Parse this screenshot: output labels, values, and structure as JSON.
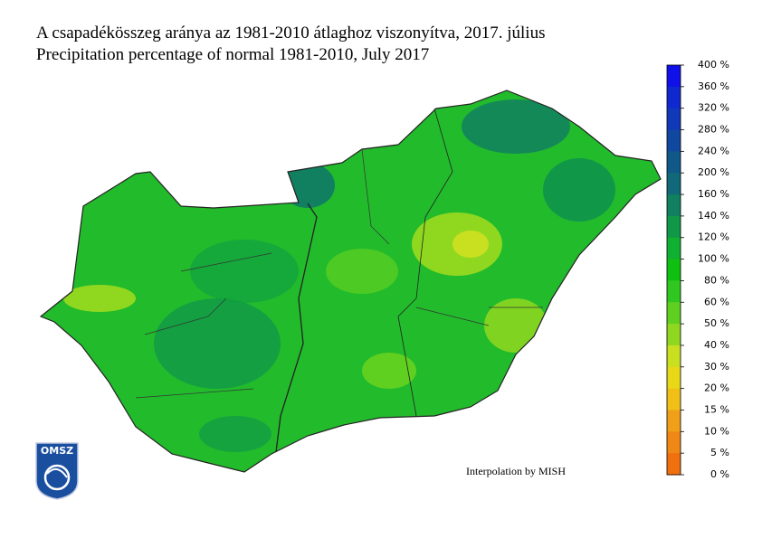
{
  "header": {
    "title_hu": "A csapadékösszeg aránya az 1981-2010 átlaghoz viszonyítva, 2017. július",
    "title_en": "Precipitation percentage of normal 1981-2010, July 2017"
  },
  "legend": {
    "labels": [
      "400 %",
      "360 %",
      "320 %",
      "280 %",
      "240 %",
      "200 %",
      "160 %",
      "140 %",
      "120 %",
      "100 %",
      "80 %",
      "60 %",
      "50 %",
      "40 %",
      "30 %",
      "20 %",
      "15 %",
      "10 %",
      "5 %",
      "0 %"
    ],
    "colors": [
      "#1010e8",
      "#1028d0",
      "#1038b8",
      "#1048a0",
      "#105888",
      "#106878",
      "#108060",
      "#109848",
      "#10b030",
      "#10c010",
      "#30c820",
      "#60d020",
      "#90d820",
      "#c8e020",
      "#e8d818",
      "#f0c018",
      "#f0a018",
      "#f08818",
      "#f07010"
    ]
  },
  "credit": "Interpolation by MISH",
  "logo": "OMSZ"
}
